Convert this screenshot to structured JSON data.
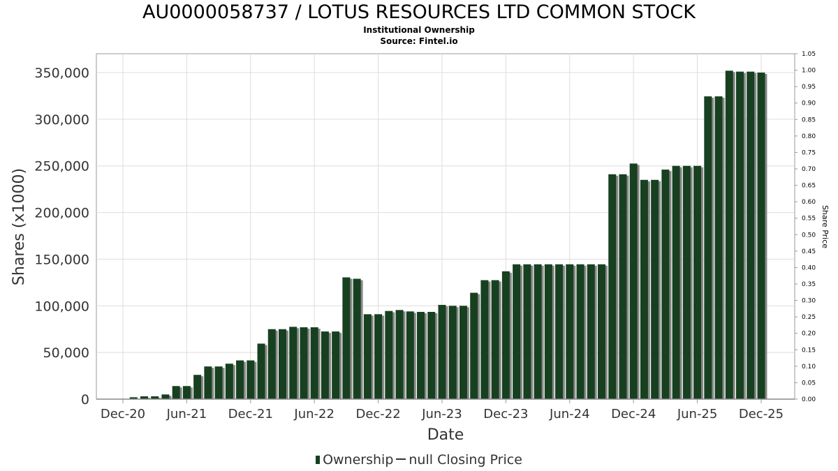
{
  "title": "AU0000058737 / LOTUS RESOURCES LTD COMMON STOCK",
  "subtitle": "Institutional Ownership",
  "source": "Source: Fintel.io",
  "legend": {
    "ownership": "Ownership",
    "price": "null Closing Price"
  },
  "colors": {
    "bar": "#174020",
    "shadow": "#888888",
    "grid": "#dddddd"
  },
  "chart_data": {
    "type": "bar",
    "xlabel": "Date",
    "ylabel": "Shares (x1000)",
    "y2label": "Share Price",
    "ylim": [
      0,
      370000
    ],
    "y2lim": [
      0,
      1.05
    ],
    "yticks": [
      "0",
      "50,000",
      "100,000",
      "150,000",
      "200,000",
      "250,000",
      "300,000",
      "350,000"
    ],
    "y2ticks": [
      "0.00",
      "0.05",
      "0.10",
      "0.15",
      "0.20",
      "0.25",
      "0.30",
      "0.35",
      "0.40",
      "0.45",
      "0.50",
      "0.55",
      "0.60",
      "0.65",
      "0.70",
      "0.75",
      "0.80",
      "0.85",
      "0.90",
      "0.95",
      "1.00",
      "1.05"
    ],
    "xticks": [
      "Dec-20",
      "Jun-21",
      "Dec-21",
      "Jun-22",
      "Dec-22",
      "Jun-23",
      "Dec-23",
      "Jun-24",
      "Dec-24",
      "Jun-25",
      "Dec-25"
    ],
    "series": [
      {
        "name": "Ownership",
        "values": [
          2000,
          3000,
          3000,
          5000,
          14000,
          14000,
          26000,
          35000,
          35000,
          38000,
          41500,
          41500,
          59500,
          75000,
          75000,
          77500,
          77000,
          77000,
          72500,
          72500,
          130500,
          129000,
          91000,
          91000,
          94500,
          95500,
          94000,
          93500,
          93500,
          101000,
          100000,
          100000,
          114000,
          127500,
          127500,
          137000,
          144500,
          144500,
          144500,
          144500,
          144500,
          144500,
          144500,
          144500,
          144500,
          241000,
          241000,
          252500,
          235000,
          235000,
          246000,
          250000,
          250000,
          250000,
          324500,
          324500,
          352000,
          351000,
          351000,
          350000
        ]
      }
    ]
  }
}
